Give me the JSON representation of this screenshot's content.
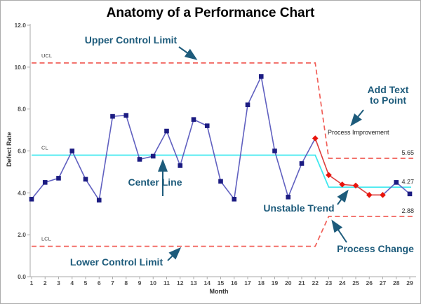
{
  "chart_data": {
    "type": "line",
    "title": "Anatomy of a Performance Chart",
    "xlabel": "Month",
    "ylabel": "Defect Rate",
    "ylim": [
      0,
      12
    ],
    "y_ticks": [
      {
        "v": 0,
        "t": "0.0"
      },
      {
        "v": 2,
        "t": "2.0"
      },
      {
        "v": 4,
        "t": "4.0"
      },
      {
        "v": 6,
        "t": "6.0"
      },
      {
        "v": 8,
        "t": "8.0"
      },
      {
        "v": 10,
        "t": "10.0"
      },
      {
        "v": 12,
        "t": "12.0"
      }
    ],
    "x": [
      1,
      2,
      3,
      4,
      5,
      6,
      7,
      8,
      9,
      10,
      11,
      12,
      13,
      14,
      15,
      16,
      17,
      18,
      19,
      20,
      21,
      22,
      23,
      24,
      25,
      26,
      27,
      28,
      29
    ],
    "points": [
      {
        "month": 1,
        "value": 3.7,
        "phase": "normal"
      },
      {
        "month": 2,
        "value": 4.5,
        "phase": "normal"
      },
      {
        "month": 3,
        "value": 4.7,
        "phase": "normal"
      },
      {
        "month": 4,
        "value": 6.0,
        "phase": "normal"
      },
      {
        "month": 5,
        "value": 4.65,
        "phase": "normal"
      },
      {
        "month": 6,
        "value": 3.65,
        "phase": "normal"
      },
      {
        "month": 7,
        "value": 7.65,
        "phase": "normal"
      },
      {
        "month": 8,
        "value": 7.7,
        "phase": "normal"
      },
      {
        "month": 9,
        "value": 5.6,
        "phase": "normal"
      },
      {
        "month": 10,
        "value": 5.75,
        "phase": "normal"
      },
      {
        "month": 11,
        "value": 6.95,
        "phase": "normal"
      },
      {
        "month": 12,
        "value": 5.3,
        "phase": "normal"
      },
      {
        "month": 13,
        "value": 7.5,
        "phase": "normal"
      },
      {
        "month": 14,
        "value": 7.2,
        "phase": "normal"
      },
      {
        "month": 15,
        "value": 4.55,
        "phase": "normal"
      },
      {
        "month": 16,
        "value": 3.7,
        "phase": "normal"
      },
      {
        "month": 17,
        "value": 8.2,
        "phase": "normal"
      },
      {
        "month": 18,
        "value": 9.55,
        "phase": "normal"
      },
      {
        "month": 19,
        "value": 6.0,
        "phase": "normal"
      },
      {
        "month": 20,
        "value": 3.8,
        "phase": "normal"
      },
      {
        "month": 21,
        "value": 5.4,
        "phase": "normal"
      },
      {
        "month": 22,
        "value": 6.6,
        "phase": "improved"
      },
      {
        "month": 23,
        "value": 4.85,
        "phase": "improved"
      },
      {
        "month": 24,
        "value": 4.4,
        "phase": "improved"
      },
      {
        "month": 25,
        "value": 4.35,
        "phase": "improved"
      },
      {
        "month": 26,
        "value": 3.9,
        "phase": "improved"
      },
      {
        "month": 27,
        "value": 3.9,
        "phase": "improved"
      },
      {
        "month": 28,
        "value": 4.5,
        "phase": "normal"
      },
      {
        "month": 29,
        "value": 3.95,
        "phase": "normal"
      }
    ],
    "limits": [
      {
        "key": "ucl",
        "label": "UCL",
        "style": "dashed",
        "before": 10.2,
        "after": 5.65,
        "after_label": "5.65",
        "change_from_month": 22,
        "change_to_month": 23
      },
      {
        "key": "cl",
        "label": "CL",
        "style": "solid",
        "before": 5.8,
        "after": 4.27,
        "after_label": "4.27",
        "change_from_month": 22,
        "change_to_month": 23
      },
      {
        "key": "lcl",
        "label": "LCL",
        "style": "dashed",
        "before": 1.45,
        "after": 2.88,
        "after_label": "2.88",
        "change_from_month": 22,
        "change_to_month": 23
      }
    ],
    "colors": {
      "control_limit": "#f15f58",
      "center_line": "#3fe8ef",
      "series_line": "#6060c0",
      "series_marker": "#1c1c82",
      "improved_line": "#dd3b3b",
      "improved_marker": "#e8150d",
      "axis": "#a9a9a9"
    },
    "legend": "none",
    "grid": false
  },
  "annotations": {
    "color": "#1d5b7b",
    "upper_control_limit": "Upper Control Limit",
    "center_line": "Center Line",
    "lower_control_limit": "Lower Control Limit",
    "add_text_line1": "Add Text",
    "add_text_line2": "to Point",
    "unstable_trend": "Unstable Trend",
    "process_change": "Process Change",
    "point_label": "Process Improvement"
  }
}
